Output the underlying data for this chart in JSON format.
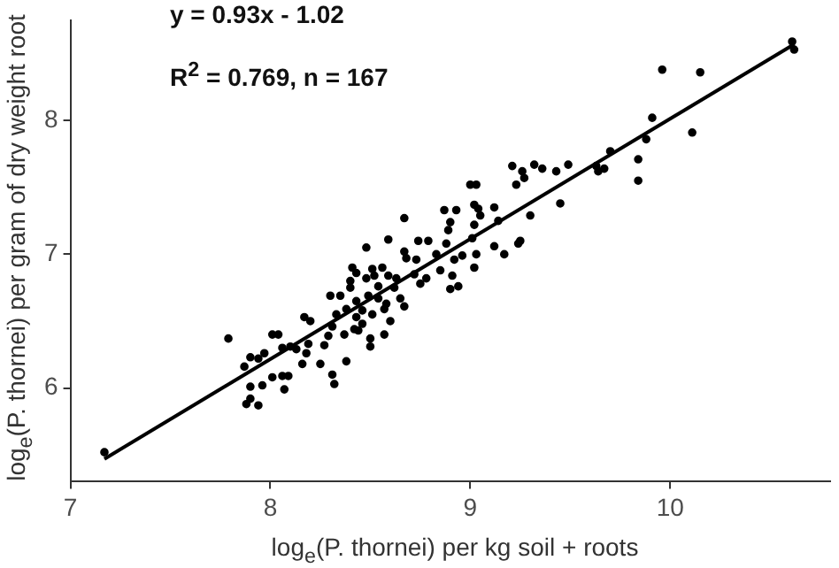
{
  "chart_data": {
    "type": "scatter",
    "xlabel": "log$_{e}$(P. thornei) per kg soil + roots",
    "ylabel": "log$_{e}$(P. thornei) per gram of dry weight root",
    "annotations": [
      "y = 0.93x - 1.02",
      "R$^{2}$ = 0.769, n = 167"
    ],
    "xlim": [
      7,
      10.8
    ],
    "ylim": [
      5.3,
      8.75
    ],
    "xticks": [
      7,
      8,
      9,
      10
    ],
    "yticks": [
      6,
      7,
      8
    ],
    "grid": false,
    "legend": false,
    "series": [
      {
        "color": "#000000",
        "marker": "circle",
        "x": [
          7.17,
          7.79,
          7.87,
          7.9,
          7.94,
          7.97,
          7.9,
          7.96,
          7.88,
          7.9,
          7.94,
          8.01,
          8.04,
          8.01,
          8.06,
          8.09,
          8.1,
          8.13,
          8.06,
          8.17,
          8.2,
          8.16,
          8.18,
          8.07,
          8.19,
          8.25,
          8.27,
          8.29,
          8.3,
          8.31,
          8.32,
          8.33,
          8.31,
          8.35,
          8.37,
          8.38,
          8.38,
          8.4,
          8.4,
          8.41,
          8.43,
          8.43,
          8.43,
          8.42,
          8.44,
          8.46,
          8.46,
          8.48,
          8.48,
          8.49,
          8.5,
          8.5,
          8.51,
          8.51,
          8.52,
          8.54,
          8.54,
          8.56,
          8.57,
          8.57,
          8.58,
          8.59,
          8.59,
          8.6,
          8.62,
          8.63,
          8.65,
          8.67,
          8.67,
          8.68,
          8.67,
          8.72,
          8.73,
          8.74,
          8.75,
          8.78,
          8.79,
          8.83,
          8.85,
          8.87,
          8.88,
          8.89,
          8.9,
          8.9,
          8.91,
          8.92,
          8.93,
          8.94,
          8.96,
          9,
          9.03,
          9.01,
          9.02,
          9.02,
          9.03,
          9.02,
          9.04,
          9.05,
          9.12,
          9.12,
          9.14,
          9.17,
          9.21,
          9.24,
          9.25,
          9.23,
          9.26,
          9.27,
          9.3,
          9.32,
          9.36,
          9.43,
          9.45,
          9.49,
          9.63,
          9.64,
          9.67,
          9.7,
          9.84,
          9.84,
          9.88,
          9.91,
          9.96,
          10.11,
          10.15,
          10.61,
          10.62
        ],
        "values": [
          5.52,
          6.37,
          6.16,
          6.23,
          6.22,
          6.26,
          6.01,
          6.02,
          5.88,
          5.92,
          5.87,
          6.4,
          6.4,
          6.08,
          6.09,
          6.09,
          6.31,
          6.29,
          6.3,
          6.53,
          6.5,
          6.18,
          6.26,
          5.99,
          6.33,
          6.18,
          6.32,
          6.39,
          6.69,
          6.1,
          6.03,
          6.55,
          6.46,
          6.69,
          6.4,
          6.2,
          6.59,
          6.8,
          6.75,
          6.9,
          6.86,
          6.65,
          6.53,
          6.44,
          6.43,
          6.48,
          6.58,
          6.82,
          7.05,
          6.69,
          6.37,
          6.31,
          6.55,
          6.89,
          6.84,
          6.76,
          6.67,
          6.9,
          6.4,
          6.59,
          6.63,
          7.11,
          6.84,
          6.5,
          6.75,
          6.82,
          6.67,
          7.27,
          7.02,
          6.97,
          6.61,
          6.85,
          6.96,
          7.1,
          6.78,
          6.82,
          7.1,
          7,
          6.88,
          7.33,
          7.08,
          7.18,
          7.24,
          6.74,
          6.84,
          6.96,
          7.33,
          6.76,
          6.99,
          7.52,
          7.52,
          7.12,
          7.22,
          6.9,
          7,
          7.37,
          7.34,
          7.29,
          7.06,
          7.35,
          7.25,
          7,
          7.66,
          7.08,
          7.1,
          7.52,
          7.62,
          7.57,
          7.29,
          7.67,
          7.64,
          7.62,
          7.38,
          7.67,
          7.66,
          7.62,
          7.64,
          7.77,
          7.71,
          7.55,
          7.86,
          8.02,
          8.38,
          7.91,
          8.36,
          8.59,
          8.53
        ]
      },
      {
        "type": "line",
        "color": "#000000",
        "x": [
          7.17,
          10.62
        ],
        "values": [
          5.47,
          8.57
        ]
      }
    ]
  }
}
